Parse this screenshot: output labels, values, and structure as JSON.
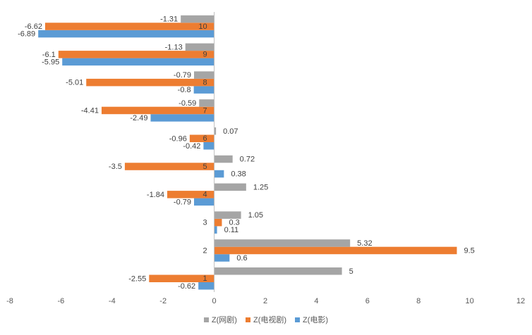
{
  "chart_data": {
    "type": "bar",
    "orientation": "horizontal",
    "title": "",
    "xlabel": "",
    "ylabel": "",
    "xlim": [
      -8,
      12
    ],
    "xticks": [
      -8,
      -6,
      -4,
      -2,
      0,
      2,
      4,
      6,
      8,
      10,
      12
    ],
    "categories": [
      "1",
      "2",
      "3",
      "4",
      "5",
      "6",
      "7",
      "8",
      "9",
      "10"
    ],
    "series": [
      {
        "name": "Z(电影)",
        "color": "#5B9BD5",
        "values": [
          -0.62,
          0.6,
          0.11,
          -0.79,
          0.38,
          -0.42,
          -2.49,
          -0.8,
          -5.95,
          -6.89
        ]
      },
      {
        "name": "Z(电视剧)",
        "color": "#ED7D31",
        "values": [
          -2.55,
          9.5,
          0.3,
          -1.84,
          -3.5,
          -0.96,
          -4.41,
          -5.01,
          -6.1,
          -6.62
        ]
      },
      {
        "name": "Z(网剧)",
        "color": "#A5A5A5",
        "values": [
          5,
          5.32,
          1.05,
          1.25,
          0.72,
          0.07,
          -0.59,
          -0.79,
          -1.13,
          -1.31
        ]
      }
    ],
    "legend_order": [
      "Z(网剧)",
      "Z(电视剧)",
      "Z(电影)"
    ],
    "legend_position": "bottom",
    "grid": false
  }
}
